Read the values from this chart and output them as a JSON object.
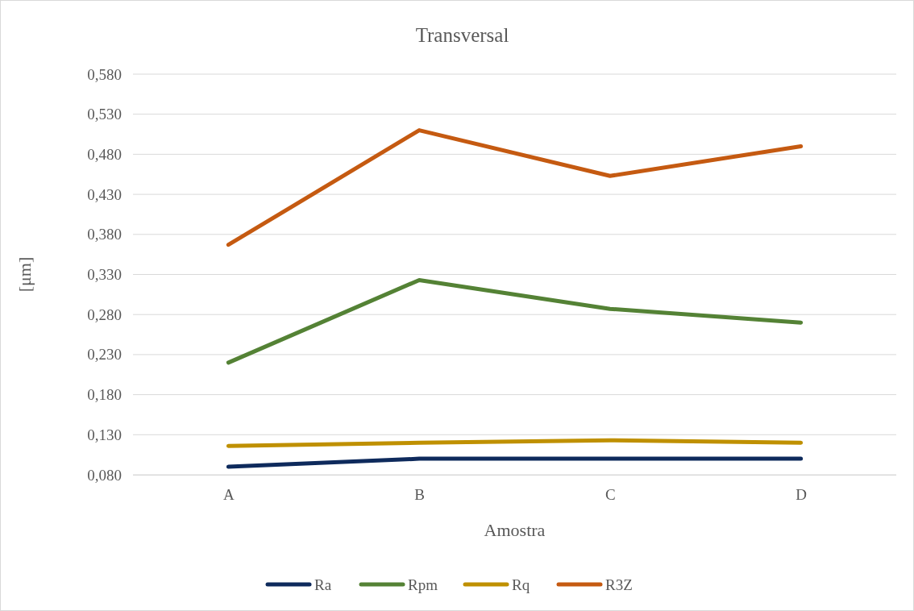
{
  "chart_data": {
    "type": "line",
    "title": "Transversal",
    "xlabel": "Amostra",
    "ylabel": "[μm]",
    "categories": [
      "A",
      "B",
      "C",
      "D"
    ],
    "series": [
      {
        "name": "Ra",
        "color": "#0e2a5c",
        "values": [
          0.09,
          0.1,
          0.1,
          0.1
        ]
      },
      {
        "name": "Rpm",
        "color": "#548235",
        "values": [
          0.22,
          0.323,
          0.287,
          0.27
        ]
      },
      {
        "name": "Rq",
        "color": "#bf9000",
        "values": [
          0.116,
          0.12,
          0.123,
          0.12
        ]
      },
      {
        "name": "R3Z",
        "color": "#c55a11",
        "values": [
          0.367,
          0.51,
          0.453,
          0.49
        ]
      }
    ],
    "ylim": [
      0.08,
      0.58
    ],
    "yticks": [
      {
        "value": 0.08,
        "label": "0,080"
      },
      {
        "value": 0.13,
        "label": "0,130"
      },
      {
        "value": 0.18,
        "label": "0,180"
      },
      {
        "value": 0.23,
        "label": "0,230"
      },
      {
        "value": 0.28,
        "label": "0,280"
      },
      {
        "value": 0.33,
        "label": "0,330"
      },
      {
        "value": 0.38,
        "label": "0,380"
      },
      {
        "value": 0.43,
        "label": "0,430"
      },
      {
        "value": 0.48,
        "label": "0,480"
      },
      {
        "value": 0.53,
        "label": "0,530"
      },
      {
        "value": 0.58,
        "label": "0,580"
      }
    ],
    "grid": "y",
    "legend": "bottom",
    "marker": "none",
    "line_style": "solid"
  }
}
